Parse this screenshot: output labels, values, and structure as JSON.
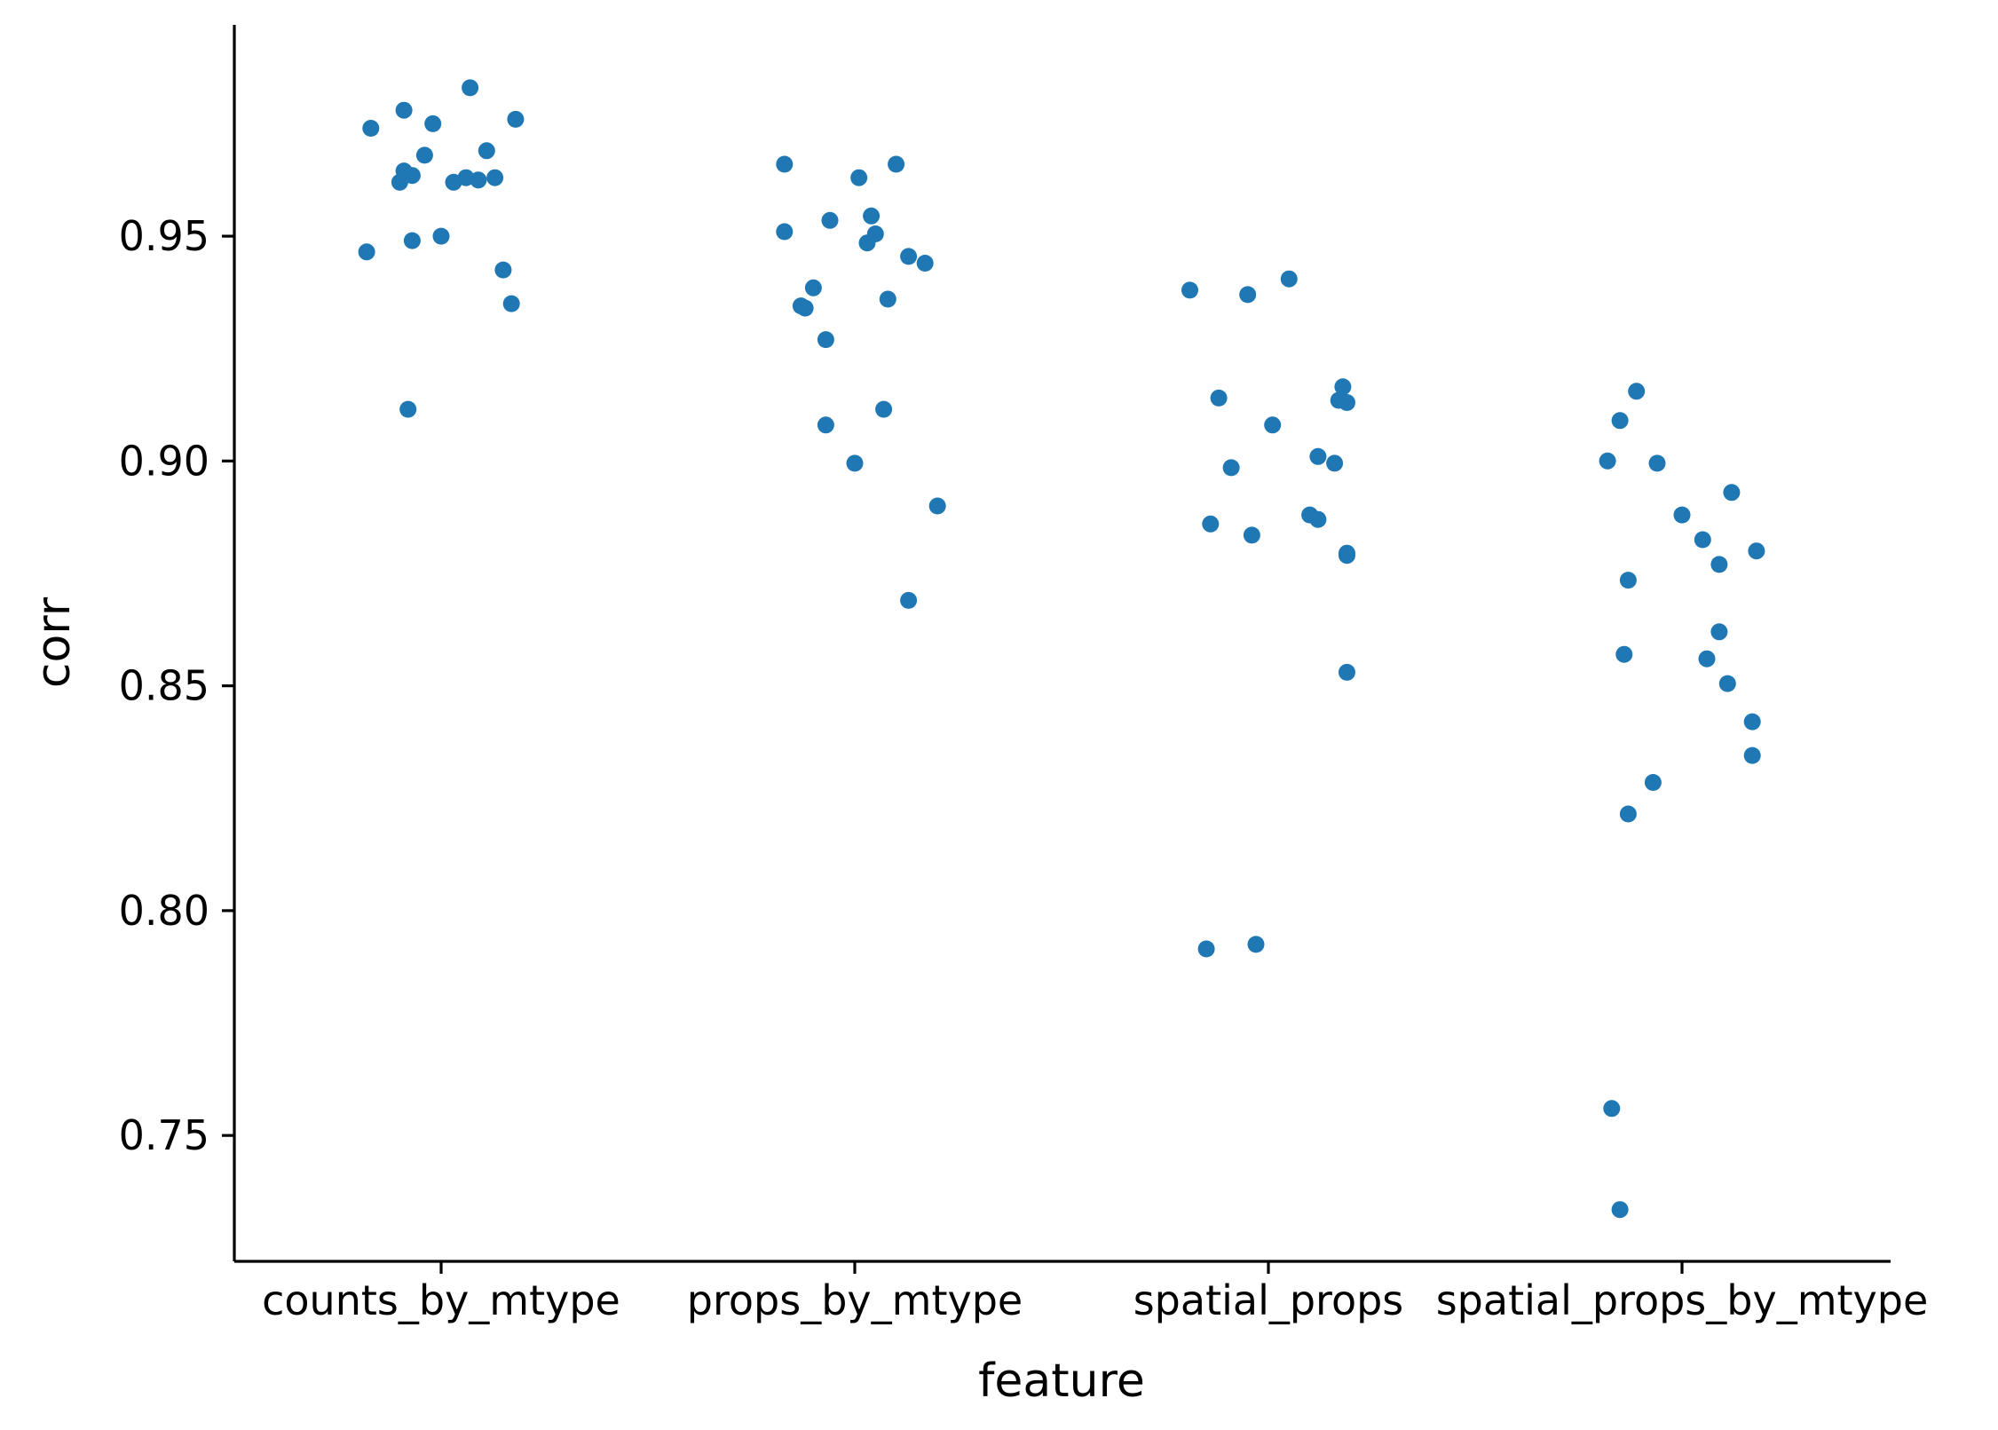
{
  "chart_data": {
    "type": "scatter",
    "title": "",
    "xlabel": "feature",
    "ylabel": "corr",
    "categories": [
      "counts_by_mtype",
      "props_by_mtype",
      "spatial_props",
      "spatial_props_by_mtype"
    ],
    "yticks": [
      "0.75",
      "0.80",
      "0.85",
      "0.90",
      "0.95"
    ],
    "ylim": [
      0.722,
      0.997
    ],
    "grid": false,
    "legend": "none",
    "point_color": "#1f77b4",
    "series": [
      {
        "category": "counts_by_mtype",
        "points": [
          {
            "jitter": -0.17,
            "value": 0.974
          },
          {
            "jitter": -0.09,
            "value": 0.978
          },
          {
            "jitter": 0.07,
            "value": 0.983
          },
          {
            "jitter": -0.02,
            "value": 0.975
          },
          {
            "jitter": 0.18,
            "value": 0.976
          },
          {
            "jitter": -0.04,
            "value": 0.968
          },
          {
            "jitter": 0.11,
            "value": 0.969
          },
          {
            "jitter": -0.09,
            "value": 0.9645
          },
          {
            "jitter": -0.07,
            "value": 0.9635
          },
          {
            "jitter": 0.06,
            "value": 0.963
          },
          {
            "jitter": 0.09,
            "value": 0.9625
          },
          {
            "jitter": 0.13,
            "value": 0.963
          },
          {
            "jitter": 0.03,
            "value": 0.962
          },
          {
            "jitter": -0.1,
            "value": 0.962
          },
          {
            "jitter": -0.07,
            "value": 0.949
          },
          {
            "jitter": 0.0,
            "value": 0.95
          },
          {
            "jitter": -0.18,
            "value": 0.9465
          },
          {
            "jitter": 0.15,
            "value": 0.9425
          },
          {
            "jitter": 0.17,
            "value": 0.935
          },
          {
            "jitter": -0.08,
            "value": 0.9115
          }
        ]
      },
      {
        "category": "props_by_mtype",
        "points": [
          {
            "jitter": -0.17,
            "value": 0.966
          },
          {
            "jitter": 0.1,
            "value": 0.966
          },
          {
            "jitter": 0.01,
            "value": 0.963
          },
          {
            "jitter": 0.04,
            "value": 0.9545
          },
          {
            "jitter": -0.06,
            "value": 0.9535
          },
          {
            "jitter": -0.17,
            "value": 0.951
          },
          {
            "jitter": 0.05,
            "value": 0.9505
          },
          {
            "jitter": 0.03,
            "value": 0.9485
          },
          {
            "jitter": 0.13,
            "value": 0.9455
          },
          {
            "jitter": 0.17,
            "value": 0.944
          },
          {
            "jitter": -0.1,
            "value": 0.9385
          },
          {
            "jitter": 0.08,
            "value": 0.936
          },
          {
            "jitter": -0.13,
            "value": 0.9345
          },
          {
            "jitter": -0.12,
            "value": 0.934
          },
          {
            "jitter": -0.07,
            "value": 0.927
          },
          {
            "jitter": 0.07,
            "value": 0.9115
          },
          {
            "jitter": -0.07,
            "value": 0.908
          },
          {
            "jitter": 0.0,
            "value": 0.8995
          },
          {
            "jitter": 0.2,
            "value": 0.89
          },
          {
            "jitter": 0.13,
            "value": 0.869
          }
        ]
      },
      {
        "category": "spatial_props",
        "points": [
          {
            "jitter": 0.05,
            "value": 0.9405
          },
          {
            "jitter": -0.19,
            "value": 0.938
          },
          {
            "jitter": -0.05,
            "value": 0.937
          },
          {
            "jitter": 0.18,
            "value": 0.9165
          },
          {
            "jitter": -0.12,
            "value": 0.914
          },
          {
            "jitter": 0.17,
            "value": 0.9135
          },
          {
            "jitter": 0.19,
            "value": 0.913
          },
          {
            "jitter": 0.01,
            "value": 0.908
          },
          {
            "jitter": 0.12,
            "value": 0.901
          },
          {
            "jitter": 0.16,
            "value": 0.8995
          },
          {
            "jitter": -0.09,
            "value": 0.8985
          },
          {
            "jitter": 0.1,
            "value": 0.888
          },
          {
            "jitter": 0.12,
            "value": 0.887
          },
          {
            "jitter": -0.14,
            "value": 0.886
          },
          {
            "jitter": -0.04,
            "value": 0.8835
          },
          {
            "jitter": 0.19,
            "value": 0.8795
          },
          {
            "jitter": 0.19,
            "value": 0.879
          },
          {
            "jitter": 0.19,
            "value": 0.853
          },
          {
            "jitter": -0.03,
            "value": 0.7925
          },
          {
            "jitter": -0.15,
            "value": 0.7915
          }
        ]
      },
      {
        "category": "spatial_props_by_mtype",
        "points": [
          {
            "jitter": -0.11,
            "value": 0.9155
          },
          {
            "jitter": -0.15,
            "value": 0.909
          },
          {
            "jitter": -0.18,
            "value": 0.9
          },
          {
            "jitter": -0.06,
            "value": 0.8995
          },
          {
            "jitter": 0.12,
            "value": 0.893
          },
          {
            "jitter": 0.0,
            "value": 0.888
          },
          {
            "jitter": 0.05,
            "value": 0.8825
          },
          {
            "jitter": 0.18,
            "value": 0.88
          },
          {
            "jitter": 0.09,
            "value": 0.877
          },
          {
            "jitter": -0.13,
            "value": 0.8735
          },
          {
            "jitter": 0.09,
            "value": 0.862
          },
          {
            "jitter": -0.14,
            "value": 0.857
          },
          {
            "jitter": 0.06,
            "value": 0.856
          },
          {
            "jitter": 0.11,
            "value": 0.8505
          },
          {
            "jitter": 0.17,
            "value": 0.842
          },
          {
            "jitter": 0.17,
            "value": 0.8345
          },
          {
            "jitter": -0.07,
            "value": 0.8285
          },
          {
            "jitter": -0.13,
            "value": 0.8215
          },
          {
            "jitter": -0.17,
            "value": 0.756
          },
          {
            "jitter": -0.15,
            "value": 0.7335
          }
        ]
      }
    ]
  }
}
